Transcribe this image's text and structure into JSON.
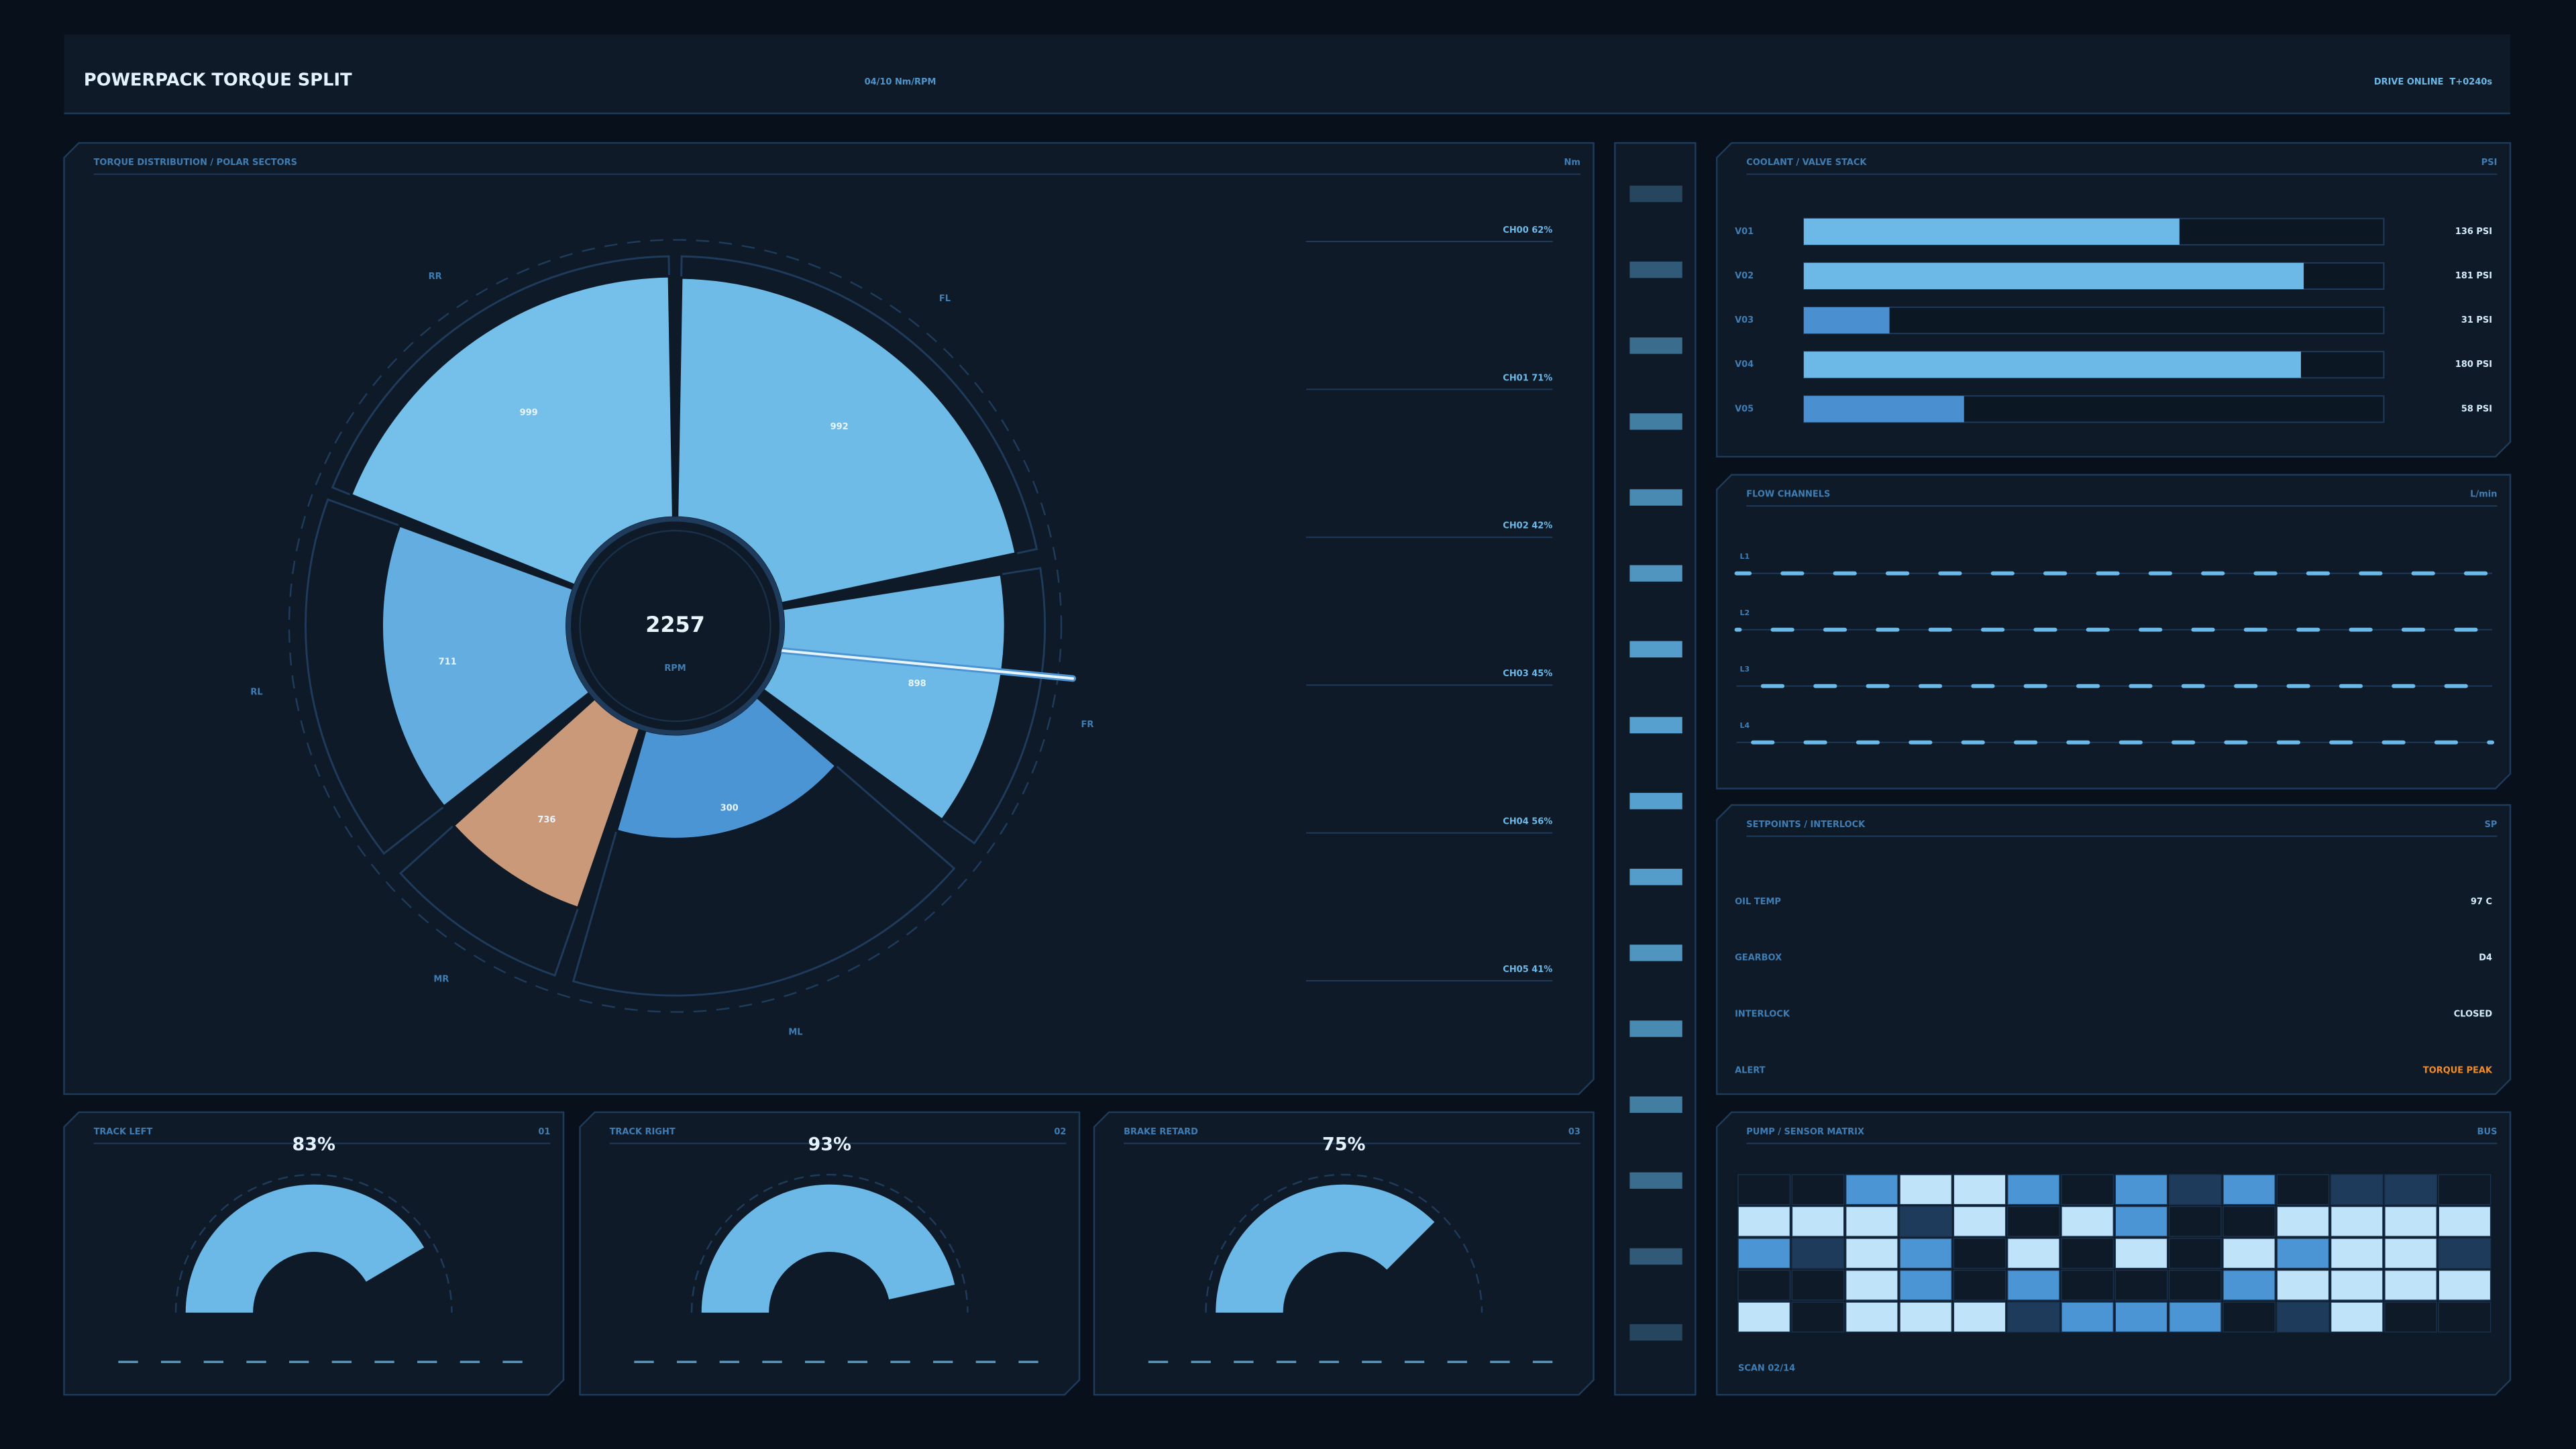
{
  "header": {
    "title": "POWERPACK TORQUE SPLIT",
    "mode": "04/10 Nm/RPM",
    "status": "DRIVE ONLINE  T+0240s"
  },
  "torque": {
    "type": "polar",
    "title": "TORQUE DISTRIBUTION / POLAR SECTORS",
    "unit": "Nm",
    "rlim": [
      0,
      1000
    ],
    "center": {
      "value": 2257,
      "label": "RPM"
    },
    "categories": [
      "RR",
      "FL",
      "FR",
      "ML",
      "MR",
      "RL"
    ],
    "values": [
      999,
      992,
      898,
      300,
      736,
      711
    ],
    "colors": [
      "#74c0ea",
      "#6fbbe8",
      "#6cb9e7",
      "#4b95d5",
      "#c9997a",
      "#63ade1"
    ],
    "channels": [
      {
        "name": "CH00",
        "value": 62,
        "label": "62%"
      },
      {
        "name": "CH01",
        "value": 71,
        "label": "71%"
      },
      {
        "name": "CH02",
        "value": 42,
        "label": "42%"
      },
      {
        "name": "CH03",
        "value": 45,
        "label": "45%"
      },
      {
        "name": "CH04",
        "value": 56,
        "label": "56%"
      },
      {
        "name": "CH05",
        "value": 41,
        "label": "41%"
      }
    ]
  },
  "coolant": {
    "type": "bar",
    "title": "COOLANT / VALVE STACK",
    "unit": "PSI",
    "xlim": [
      0,
      210
    ],
    "categories": [
      "V01",
      "V02",
      "V03",
      "V04",
      "V05"
    ],
    "values": [
      136,
      181,
      31,
      180,
      58
    ],
    "value_labels": [
      "136 PSI",
      "181 PSI",
      "31 PSI",
      "180 PSI",
      "58 PSI"
    ],
    "colors": [
      "#6cb8e6",
      "#6cb8e6",
      "#4a90d0",
      "#6cb8e6",
      "#4a90d0"
    ]
  },
  "flow": {
    "title": "FLOW CHANNELS",
    "unit": "L/min",
    "lines": [
      "L1",
      "L2",
      "L3",
      "L4"
    ]
  },
  "setpoints": {
    "title": "SETPOINTS / INTERLOCK",
    "unit": "SP",
    "rows": [
      {
        "label": "OIL TEMP",
        "value": "97 C"
      },
      {
        "label": "GEARBOX",
        "value": "D4"
      },
      {
        "label": "INTERLOCK",
        "value": "CLOSED"
      },
      {
        "label": "ALERT",
        "value": "TORQUE PEAK",
        "color": "#f28c28"
      }
    ]
  },
  "gauges": [
    {
      "type": "gauge",
      "title": "TRACK LEFT",
      "id": "01",
      "value": 83,
      "value_label": "83%",
      "lim": [
        0,
        100
      ]
    },
    {
      "type": "gauge",
      "title": "TRACK RIGHT",
      "id": "02",
      "value": 93,
      "value_label": "93%",
      "lim": [
        0,
        100
      ]
    },
    {
      "type": "gauge",
      "title": "BRAKE RETARD",
      "id": "03",
      "value": 75,
      "value_label": "75%",
      "lim": [
        0,
        100
      ]
    }
  ],
  "matrix": {
    "title": "PUMP / SENSOR MATRIX",
    "unit": "BUS",
    "footer": "SCAN 02/14",
    "palette": [
      "#0e1a28",
      "#1f3b5c",
      "#4b95d5",
      "#bfe3f8"
    ],
    "levels": [
      [
        0,
        0,
        2,
        3,
        3,
        2,
        0,
        2,
        1,
        2,
        0,
        1,
        1,
        0
      ],
      [
        3,
        3,
        3,
        1,
        3,
        0,
        3,
        2,
        0,
        0,
        3,
        3,
        3,
        3
      ],
      [
        2,
        1,
        3,
        2,
        0,
        3,
        0,
        3,
        0,
        3,
        2,
        3,
        3,
        1
      ],
      [
        0,
        0,
        3,
        2,
        0,
        2,
        0,
        0,
        0,
        2,
        3,
        3,
        3,
        3
      ],
      [
        3,
        0,
        3,
        3,
        3,
        1,
        2,
        2,
        2,
        0,
        1,
        3,
        0,
        0
      ]
    ]
  }
}
